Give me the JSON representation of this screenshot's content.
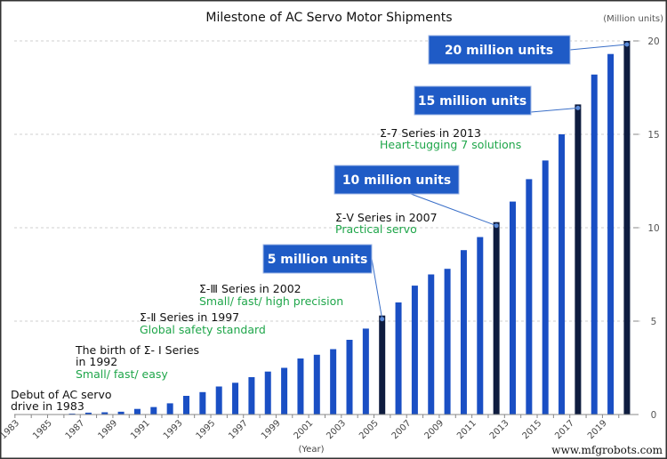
{
  "chart_data": {
    "type": "bar",
    "title": "Milestone of AC Servo Motor Shipments",
    "ylabel": "(Million units)",
    "xlabel": "(Year)",
    "ylim": [
      0,
      20
    ],
    "yticks": [
      "0",
      "5",
      "10",
      "15",
      "20"
    ],
    "y_axis_side": "right",
    "grid": "horizontal dashed",
    "categories": [
      1983,
      1984,
      1985,
      1986,
      1987,
      1988,
      1989,
      1990,
      1991,
      1992,
      1993,
      1994,
      1995,
      1996,
      1997,
      1998,
      1999,
      2000,
      2001,
      2002,
      2003,
      2004,
      2005,
      2006,
      2007,
      2008,
      2009,
      2010,
      2011,
      2012,
      2013,
      2014,
      2015,
      2016,
      2017,
      2018,
      2019,
      2020
    ],
    "xtick_labels": [
      "1983",
      "1985",
      "1987",
      "1989",
      "1991",
      "1993",
      "1995",
      "1997",
      "1999",
      "2001",
      "2003",
      "2005",
      "2007",
      "2009",
      "2011",
      "2013",
      "2015",
      "2017",
      "2019"
    ],
    "values": [
      0,
      0.01,
      0.02,
      0.05,
      0.1,
      0.12,
      0.15,
      0.3,
      0.4,
      0.6,
      1.0,
      1.2,
      1.5,
      1.7,
      2.0,
      2.3,
      2.5,
      3.0,
      3.2,
      3.5,
      4.0,
      4.6,
      5.3,
      6.0,
      6.9,
      7.5,
      7.8,
      8.8,
      9.5,
      10.3,
      11.4,
      12.6,
      13.6,
      15.0,
      16.6,
      18.2,
      19.3,
      20.0
    ],
    "highlighted_years": [
      2005,
      2012,
      2017,
      2020
    ],
    "colors": {
      "bar": "#1a4fc4",
      "highlight": "#0e1c3f",
      "callout": "#1f5bc6",
      "annotation_green": "#1fa64a"
    },
    "milestones": [
      {
        "year": 2005,
        "label": "5 million units"
      },
      {
        "year": 2012,
        "label": "10 million units"
      },
      {
        "year": 2017,
        "label": "15 million units"
      },
      {
        "year": 2020,
        "label": "20 million units"
      }
    ],
    "annotations": [
      {
        "line1": "Debut of AC servo",
        "line2": "drive in 1983",
        "sub": ""
      },
      {
        "line1": "The birth of Σ- Ⅰ Series",
        "line2": "in 1992",
        "sub": "Small/ fast/ easy"
      },
      {
        "line1": "Σ-Ⅱ Series in 1997",
        "line2": "",
        "sub": "Global safety standard"
      },
      {
        "line1": "Σ-Ⅲ Series in 2002",
        "line2": "",
        "sub": "Small/ fast/ high precision"
      },
      {
        "line1": "Σ-Ⅴ Series in 2007",
        "line2": "",
        "sub": "Practical servo"
      },
      {
        "line1": "Σ-7 Series in 2013",
        "line2": "",
        "sub": "Heart-tugging 7 solutions"
      }
    ]
  },
  "watermark": "www.mfgrobots.com"
}
